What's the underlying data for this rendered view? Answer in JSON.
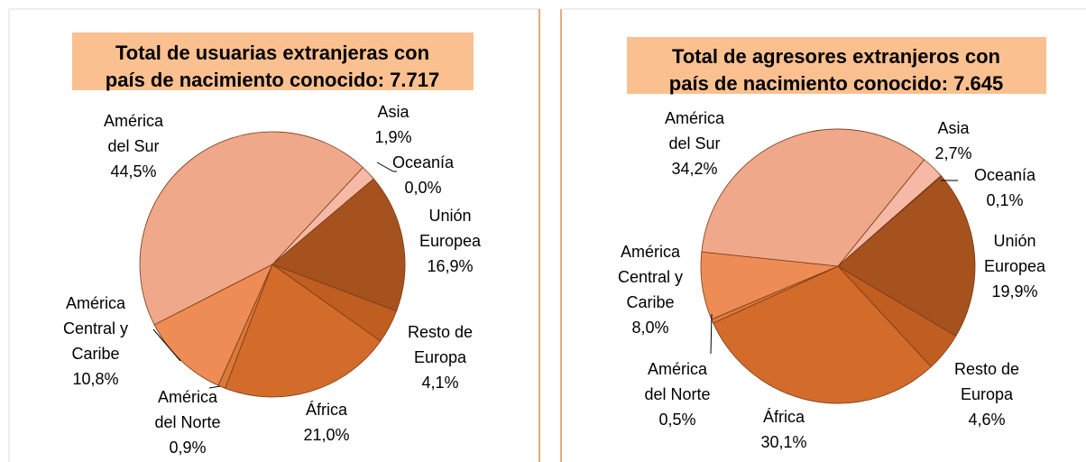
{
  "chart_data": [
    {
      "type": "pie",
      "title": "Total de usuarias extranjeras con\npaís de nacimiento conocido: 7.717",
      "categories": [
        "Asia",
        "Oceanía",
        "Unión\nEuropea",
        "Resto de\nEuropa",
        "África",
        "América\ndel Norte",
        "América\nCentral y\nCaribe",
        "América\ndel Sur"
      ],
      "values": [
        1.9,
        0.0,
        16.9,
        4.1,
        21.0,
        0.9,
        10.8,
        44.5
      ],
      "value_labels": [
        "1,9%",
        "0,0%",
        "16,9%",
        "4,1%",
        "21,0%",
        "0,9%",
        "10,8%",
        "44,5%"
      ],
      "colors": [
        "#f5b9a5",
        "#e0905f",
        "#a5521f",
        "#c05e22",
        "#d36b2b",
        "#d9793c",
        "#ee8c56",
        "#f0a88a"
      ]
    },
    {
      "type": "pie",
      "title": "Total de agresores extranjeros con\npaís de nacimiento conocido: 7.645",
      "categories": [
        "Asia",
        "Oceanía",
        "Unión\nEuropea",
        "Resto de\nEuropa",
        "África",
        "América\ndel Norte",
        "América\nCentral y\nCaribe",
        "América\ndel Sur"
      ],
      "values": [
        2.7,
        0.1,
        19.9,
        4.6,
        30.1,
        0.5,
        8.0,
        34.2
      ],
      "value_labels": [
        "2,7%",
        "0,1%",
        "19,9%",
        "4,6%",
        "30,1%",
        "0,5%",
        "8,0%",
        "34,2%"
      ],
      "colors": [
        "#f5b9a5",
        "#e0905f",
        "#a5521f",
        "#c05e22",
        "#d36b2b",
        "#d9793c",
        "#ee8c56",
        "#f0a88a"
      ]
    }
  ]
}
